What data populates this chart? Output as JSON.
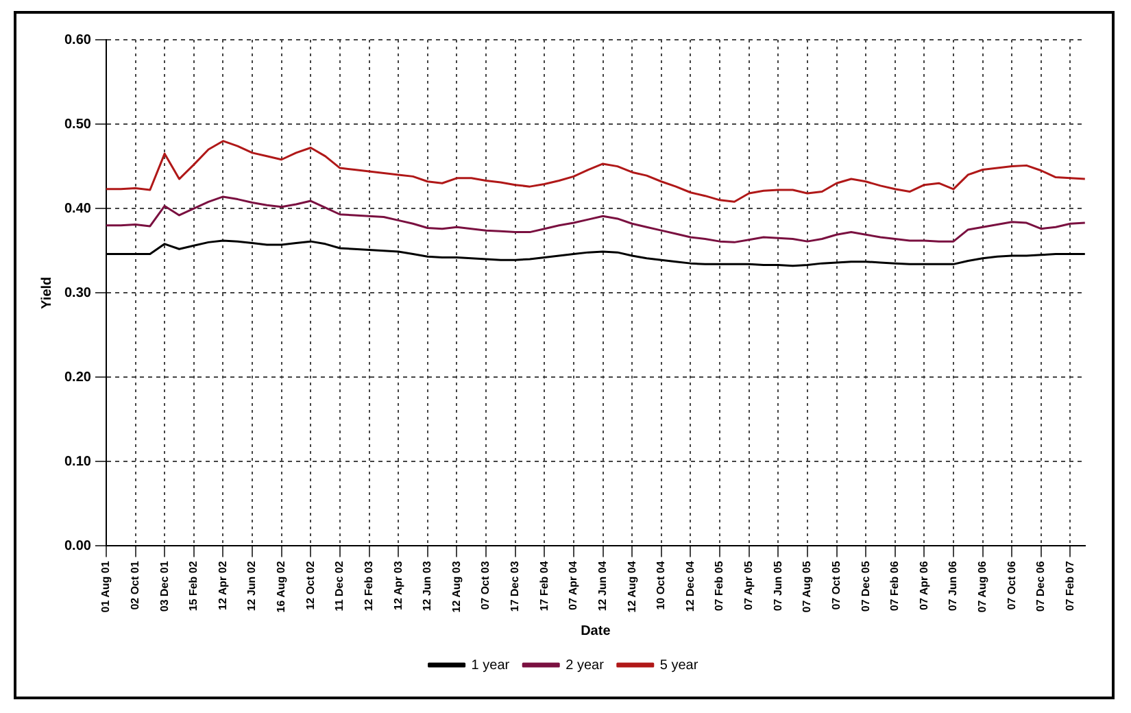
{
  "chart_data": {
    "type": "line",
    "xlabel": "Date",
    "ylabel": "Yield",
    "categories": [
      "01 Aug 01",
      null,
      "02 Oct 01",
      null,
      "03 Dec 01",
      null,
      "15 Feb 02",
      null,
      "12 Apr 02",
      null,
      "12 Jun 02",
      null,
      "16 Aug 02",
      null,
      "12 Oct 02",
      null,
      "11 Dec 02",
      null,
      "12 Feb 03",
      null,
      "12 Apr 03",
      null,
      "12 Jun 03",
      null,
      "12 Aug 03",
      null,
      "07 Oct 03",
      null,
      "17 Dec 03",
      null,
      "17 Feb 04",
      null,
      "07 Apr 04",
      null,
      "12 Jun 04",
      null,
      "12 Aug 04",
      null,
      "10 Oct 04",
      null,
      "12 Dec 04",
      null,
      "07 Feb 05",
      null,
      "07 Apr 05",
      null,
      "07 Jun 05",
      null,
      "07 Aug 05",
      null,
      "07 Oct 05",
      null,
      "07 Dec 05",
      null,
      "07 Feb 06",
      null,
      "07 Apr 06",
      null,
      "07 Jun 06",
      null,
      "07 Aug 06",
      null,
      "07 Oct 06",
      null,
      "07 Dec 06",
      null,
      "07 Feb 07",
      null
    ],
    "series": [
      {
        "name": "1 year",
        "color": "#000000",
        "values": [
          0.346,
          0.346,
          0.346,
          0.346,
          0.358,
          0.352,
          0.356,
          0.36,
          0.362,
          0.361,
          0.359,
          0.357,
          0.357,
          0.359,
          0.361,
          0.358,
          0.353,
          0.352,
          0.351,
          0.35,
          0.349,
          0.346,
          0.343,
          0.342,
          0.342,
          0.341,
          0.34,
          0.339,
          0.339,
          0.34,
          0.342,
          0.344,
          0.346,
          0.348,
          0.349,
          0.348,
          0.344,
          0.341,
          0.339,
          0.337,
          0.335,
          0.334,
          0.334,
          0.334,
          0.334,
          0.333,
          0.333,
          0.332,
          0.333,
          0.335,
          0.336,
          0.337,
          0.337,
          0.336,
          0.335,
          0.334,
          0.334,
          0.334,
          0.334,
          0.338,
          0.341,
          0.343,
          0.344,
          0.344,
          0.345,
          0.346,
          0.346,
          0.346
        ]
      },
      {
        "name": "2 year",
        "color": "#7a1040",
        "values": [
          0.38,
          0.38,
          0.381,
          0.379,
          0.403,
          0.392,
          0.4,
          0.408,
          0.414,
          0.411,
          0.407,
          0.404,
          0.402,
          0.405,
          0.409,
          0.401,
          0.393,
          0.392,
          0.391,
          0.39,
          0.386,
          0.382,
          0.377,
          0.376,
          0.378,
          0.376,
          0.374,
          0.373,
          0.372,
          0.372,
          0.376,
          0.38,
          0.383,
          0.387,
          0.391,
          0.388,
          0.382,
          0.378,
          0.374,
          0.37,
          0.366,
          0.364,
          0.361,
          0.36,
          0.363,
          0.366,
          0.365,
          0.364,
          0.361,
          0.364,
          0.369,
          0.372,
          0.369,
          0.366,
          0.364,
          0.362,
          0.362,
          0.361,
          0.361,
          0.375,
          0.378,
          0.381,
          0.384,
          0.383,
          0.376,
          0.378,
          0.382,
          0.383
        ]
      },
      {
        "name": "5 year",
        "color": "#b01818",
        "values": [
          0.423,
          0.423,
          0.424,
          0.422,
          0.465,
          0.435,
          0.452,
          0.47,
          0.48,
          0.474,
          0.466,
          0.462,
          0.458,
          0.466,
          0.472,
          0.462,
          0.448,
          0.446,
          0.444,
          0.442,
          0.44,
          0.438,
          0.432,
          0.43,
          0.436,
          0.436,
          0.433,
          0.431,
          0.428,
          0.426,
          0.429,
          0.433,
          0.438,
          0.446,
          0.453,
          0.45,
          0.443,
          0.439,
          0.432,
          0.426,
          0.419,
          0.415,
          0.41,
          0.408,
          0.418,
          0.421,
          0.422,
          0.422,
          0.418,
          0.42,
          0.43,
          0.435,
          0.432,
          0.427,
          0.423,
          0.42,
          0.428,
          0.43,
          0.423,
          0.44,
          0.446,
          0.448,
          0.45,
          0.451,
          0.445,
          0.437,
          0.436,
          0.435
        ]
      }
    ],
    "ylim": [
      0,
      0.6
    ],
    "yticks": [
      {
        "value": 0,
        "label": "0.00"
      },
      {
        "value": 0.1,
        "label": "0.10"
      },
      {
        "value": 0.2,
        "label": "0.20"
      },
      {
        "value": 0.3,
        "label": "0.30"
      },
      {
        "value": 0.4,
        "label": "0.40"
      },
      {
        "value": 0.5,
        "label": "0.50"
      },
      {
        "value": 0.6,
        "label": "0.60"
      }
    ],
    "grid": true,
    "legend": "bottom",
    "marker": "none",
    "line_style": "solid"
  }
}
